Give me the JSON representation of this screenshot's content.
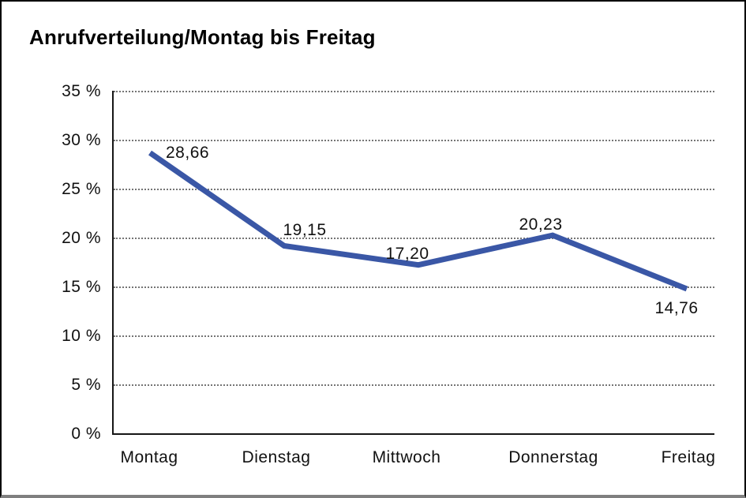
{
  "header": {
    "title": "Anrufverteilung/Montag bis Freitag"
  },
  "chart_data": {
    "type": "line",
    "title": "Anrufverteilung/Montag bis Freitag",
    "categories": [
      "Montag",
      "Dienstag",
      "Mittwoch",
      "Donnerstag",
      "Freitag"
    ],
    "series": [
      {
        "name": "Anrufverteilung",
        "values": [
          28.66,
          19.15,
          17.2,
          20.23,
          14.76
        ]
      }
    ],
    "point_labels": [
      "28,66",
      "19,15",
      "17,20",
      "20,23",
      "14,76"
    ],
    "y_ticks": [
      "35 %",
      "30 %",
      "25 %",
      "20 %",
      "15 %",
      "10 %",
      "5 %",
      "0 %"
    ],
    "ylim": [
      0,
      35
    ],
    "xlabel": "",
    "ylabel": "",
    "grid": "horizontal-dotted",
    "legend_position": "none",
    "line_color": "#3a57a6",
    "value_decimal_separator": ","
  }
}
